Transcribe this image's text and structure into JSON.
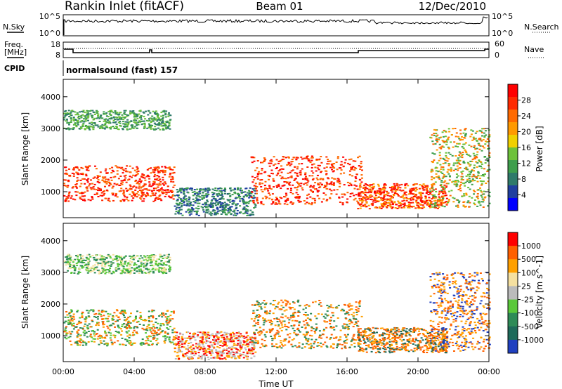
{
  "header": {
    "station": "Rankin Inlet (fitACF)",
    "beam": "Beam 01",
    "date": "12/Dec/2010"
  },
  "status_panels": {
    "nsky_label": "N.Sky",
    "nsky_ticks": [
      "10^5",
      "10^0"
    ],
    "nsearch_label": "N.Search",
    "freq_label_1": "Freq.",
    "freq_label_2": "[MHz]",
    "freq_ticks": [
      "18",
      "8"
    ],
    "nave_ticks": [
      "60",
      "0"
    ],
    "nave_label": "Nave",
    "cpid_label": "CPID",
    "cpid_value": "normalsound (fast) 157"
  },
  "chart_data": [
    {
      "type": "heatmap",
      "name": "power",
      "ylabel": "Slant Range [km]",
      "yticks": [
        1000,
        2000,
        3000,
        4000
      ],
      "ylim": [
        180,
        4550
      ],
      "xlim": [
        0,
        24
      ],
      "colorbar_label": "Power [dB]",
      "colorbar_ticks": [
        "28",
        "24",
        "20",
        "16",
        "12",
        "8",
        "4"
      ],
      "colorbar_colors": [
        "#0000ff",
        "#1f3fa0",
        "#2e7a6a",
        "#3e9e4c",
        "#6dc23a",
        "#f0d000",
        "#ff9a00",
        "#ff6a00",
        "#ff2a00",
        "#ff0000"
      ]
    },
    {
      "type": "heatmap",
      "name": "velocity",
      "ylabel": "Slant Range [km]",
      "yticks": [
        1000,
        2000,
        3000,
        4000
      ],
      "ylim": [
        180,
        4550
      ],
      "xlim": [
        0,
        24
      ],
      "xlabel": "Time UT",
      "xticks": [
        "00:00",
        "04:00",
        "08:00",
        "12:00",
        "16:00",
        "20:00",
        "00:00"
      ],
      "colorbar_label": "Velocity [m s^-1]",
      "colorbar_ticks": [
        "1000",
        "500",
        "100",
        "25",
        "-25",
        "-100",
        "-500",
        "-1000"
      ],
      "colorbar_colors": [
        "#2040c0",
        "#1e6a5a",
        "#2e8b57",
        "#5ac83a",
        "#bbbbbb",
        "#f5e0a0",
        "#ffa000",
        "#ff6000",
        "#ff0000"
      ]
    }
  ]
}
